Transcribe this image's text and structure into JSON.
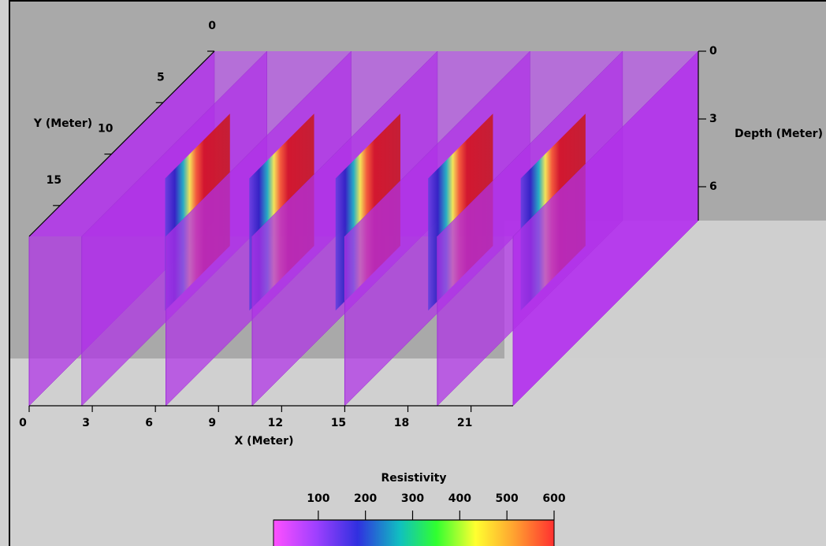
{
  "chart_data": {
    "type": "fence",
    "x_label": "X (Meter)",
    "y_label": "Y (Meter)",
    "z_label": "Depth (Meter)",
    "xlim": [
      0,
      23
    ],
    "xticks": [
      0,
      3,
      6,
      9,
      12,
      15,
      18,
      21
    ],
    "ylim": [
      0,
      18
    ],
    "yticks": [
      0,
      5,
      10,
      15
    ],
    "zlim": [
      0,
      7.5
    ],
    "zticks": [
      0,
      3,
      6
    ],
    "slice_x": [
      0,
      2.5,
      6.5,
      10.6,
      15,
      19.4,
      23
    ],
    "colorbar": {
      "title": "Resistivity",
      "lim": [
        5,
        600
      ],
      "ticks": [
        100,
        200,
        300,
        400,
        500,
        600
      ]
    }
  }
}
